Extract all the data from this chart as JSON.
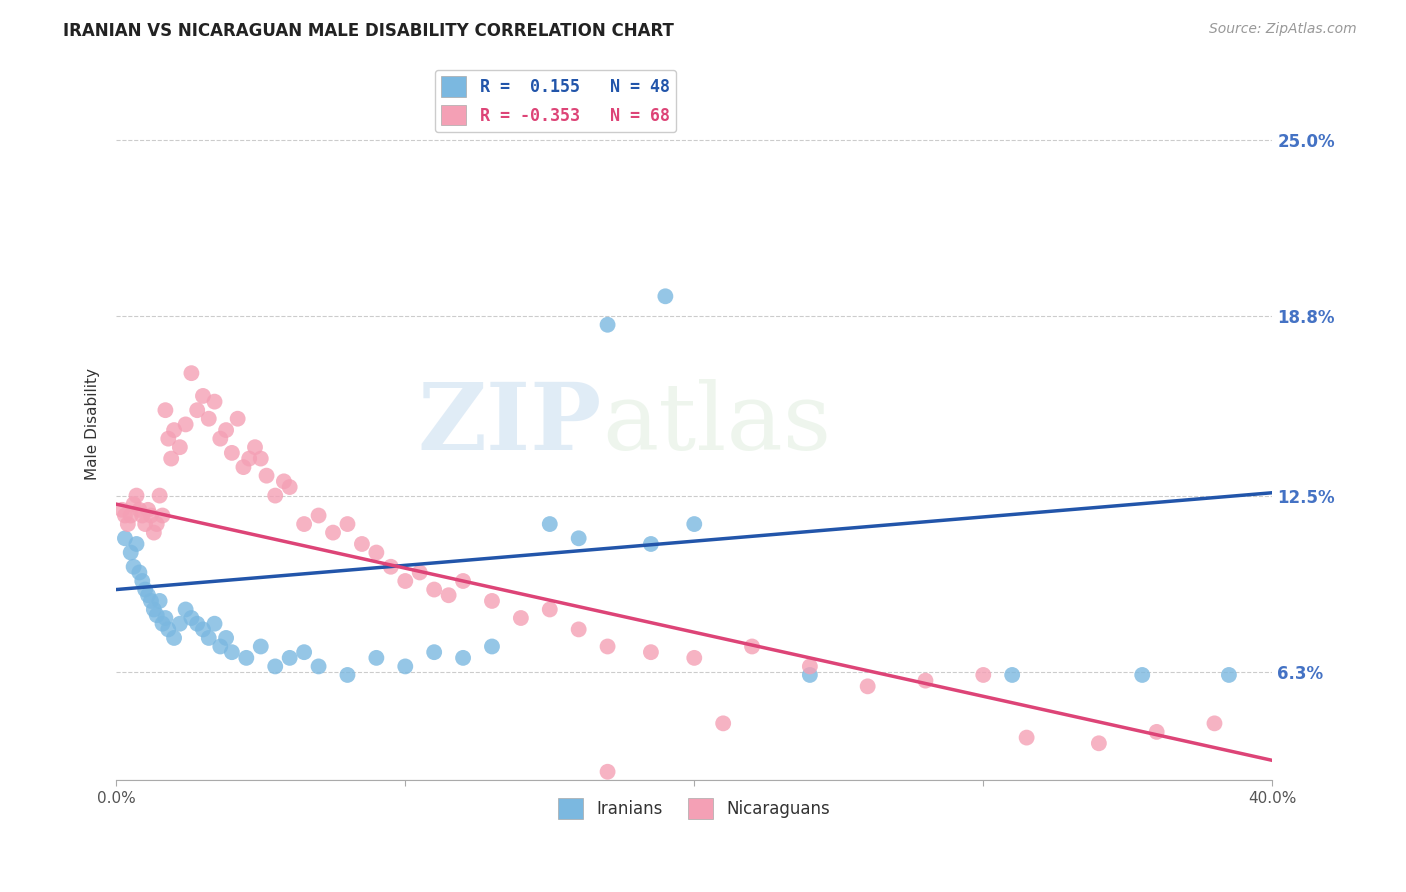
{
  "title": "IRANIAN VS NICARAGUAN MALE DISABILITY CORRELATION CHART",
  "source": "Source: ZipAtlas.com",
  "ylabel": "Male Disability",
  "ytick_labels": [
    "6.3%",
    "12.5%",
    "18.8%",
    "25.0%"
  ],
  "ytick_values": [
    0.063,
    0.125,
    0.188,
    0.25
  ],
  "xlim": [
    0.0,
    0.4
  ],
  "ylim": [
    0.025,
    0.275
  ],
  "watermark_zip": "ZIP",
  "watermark_atlas": "atlas",
  "iranian_color": "#7bb8e0",
  "nicaraguan_color": "#f4a0b5",
  "iranian_line_color": "#2255aa",
  "nicaraguan_line_color": "#dd4477",
  "legend_label1": "R =  0.155   N = 48",
  "legend_label2": "R = -0.353   N = 68",
  "iranian_line_x0": 0.0,
  "iranian_line_y0": 0.092,
  "iranian_line_x1": 0.4,
  "iranian_line_y1": 0.126,
  "nicaraguan_line_x0": 0.0,
  "nicaraguan_line_y0": 0.122,
  "nicaraguan_line_x1": 0.4,
  "nicaraguan_line_y1": 0.032,
  "iranian_pts": [
    [
      0.003,
      0.11
    ],
    [
      0.005,
      0.105
    ],
    [
      0.006,
      0.1
    ],
    [
      0.007,
      0.108
    ],
    [
      0.008,
      0.098
    ],
    [
      0.009,
      0.095
    ],
    [
      0.01,
      0.092
    ],
    [
      0.011,
      0.09
    ],
    [
      0.012,
      0.088
    ],
    [
      0.013,
      0.085
    ],
    [
      0.014,
      0.083
    ],
    [
      0.015,
      0.088
    ],
    [
      0.016,
      0.08
    ],
    [
      0.017,
      0.082
    ],
    [
      0.018,
      0.078
    ],
    [
      0.02,
      0.075
    ],
    [
      0.022,
      0.08
    ],
    [
      0.024,
      0.085
    ],
    [
      0.026,
      0.082
    ],
    [
      0.028,
      0.08
    ],
    [
      0.03,
      0.078
    ],
    [
      0.032,
      0.075
    ],
    [
      0.034,
      0.08
    ],
    [
      0.036,
      0.072
    ],
    [
      0.038,
      0.075
    ],
    [
      0.04,
      0.07
    ],
    [
      0.045,
      0.068
    ],
    [
      0.05,
      0.072
    ],
    [
      0.055,
      0.065
    ],
    [
      0.06,
      0.068
    ],
    [
      0.065,
      0.07
    ],
    [
      0.07,
      0.065
    ],
    [
      0.08,
      0.062
    ],
    [
      0.09,
      0.068
    ],
    [
      0.1,
      0.065
    ],
    [
      0.11,
      0.07
    ],
    [
      0.12,
      0.068
    ],
    [
      0.13,
      0.072
    ],
    [
      0.15,
      0.115
    ],
    [
      0.16,
      0.11
    ],
    [
      0.185,
      0.108
    ],
    [
      0.2,
      0.115
    ],
    [
      0.24,
      0.062
    ],
    [
      0.31,
      0.062
    ],
    [
      0.17,
      0.185
    ],
    [
      0.19,
      0.195
    ],
    [
      0.355,
      0.062
    ],
    [
      0.385,
      0.062
    ]
  ],
  "nicaraguan_pts": [
    [
      0.002,
      0.12
    ],
    [
      0.003,
      0.118
    ],
    [
      0.004,
      0.115
    ],
    [
      0.005,
      0.118
    ],
    [
      0.006,
      0.122
    ],
    [
      0.007,
      0.125
    ],
    [
      0.008,
      0.12
    ],
    [
      0.009,
      0.118
    ],
    [
      0.01,
      0.115
    ],
    [
      0.011,
      0.12
    ],
    [
      0.012,
      0.118
    ],
    [
      0.013,
      0.112
    ],
    [
      0.014,
      0.115
    ],
    [
      0.015,
      0.125
    ],
    [
      0.016,
      0.118
    ],
    [
      0.017,
      0.155
    ],
    [
      0.018,
      0.145
    ],
    [
      0.019,
      0.138
    ],
    [
      0.02,
      0.148
    ],
    [
      0.022,
      0.142
    ],
    [
      0.024,
      0.15
    ],
    [
      0.026,
      0.168
    ],
    [
      0.028,
      0.155
    ],
    [
      0.03,
      0.16
    ],
    [
      0.032,
      0.152
    ],
    [
      0.034,
      0.158
    ],
    [
      0.036,
      0.145
    ],
    [
      0.038,
      0.148
    ],
    [
      0.04,
      0.14
    ],
    [
      0.042,
      0.152
    ],
    [
      0.044,
      0.135
    ],
    [
      0.046,
      0.138
    ],
    [
      0.048,
      0.142
    ],
    [
      0.05,
      0.138
    ],
    [
      0.052,
      0.132
    ],
    [
      0.055,
      0.125
    ],
    [
      0.058,
      0.13
    ],
    [
      0.06,
      0.128
    ],
    [
      0.065,
      0.115
    ],
    [
      0.07,
      0.118
    ],
    [
      0.075,
      0.112
    ],
    [
      0.08,
      0.115
    ],
    [
      0.085,
      0.108
    ],
    [
      0.09,
      0.105
    ],
    [
      0.095,
      0.1
    ],
    [
      0.1,
      0.095
    ],
    [
      0.105,
      0.098
    ],
    [
      0.11,
      0.092
    ],
    [
      0.115,
      0.09
    ],
    [
      0.12,
      0.095
    ],
    [
      0.13,
      0.088
    ],
    [
      0.14,
      0.082
    ],
    [
      0.15,
      0.085
    ],
    [
      0.16,
      0.078
    ],
    [
      0.17,
      0.072
    ],
    [
      0.185,
      0.07
    ],
    [
      0.2,
      0.068
    ],
    [
      0.22,
      0.072
    ],
    [
      0.24,
      0.065
    ],
    [
      0.26,
      0.058
    ],
    [
      0.28,
      0.06
    ],
    [
      0.3,
      0.062
    ],
    [
      0.315,
      0.04
    ],
    [
      0.34,
      0.038
    ],
    [
      0.36,
      0.042
    ],
    [
      0.38,
      0.045
    ],
    [
      0.21,
      0.045
    ],
    [
      0.17,
      0.028
    ]
  ]
}
